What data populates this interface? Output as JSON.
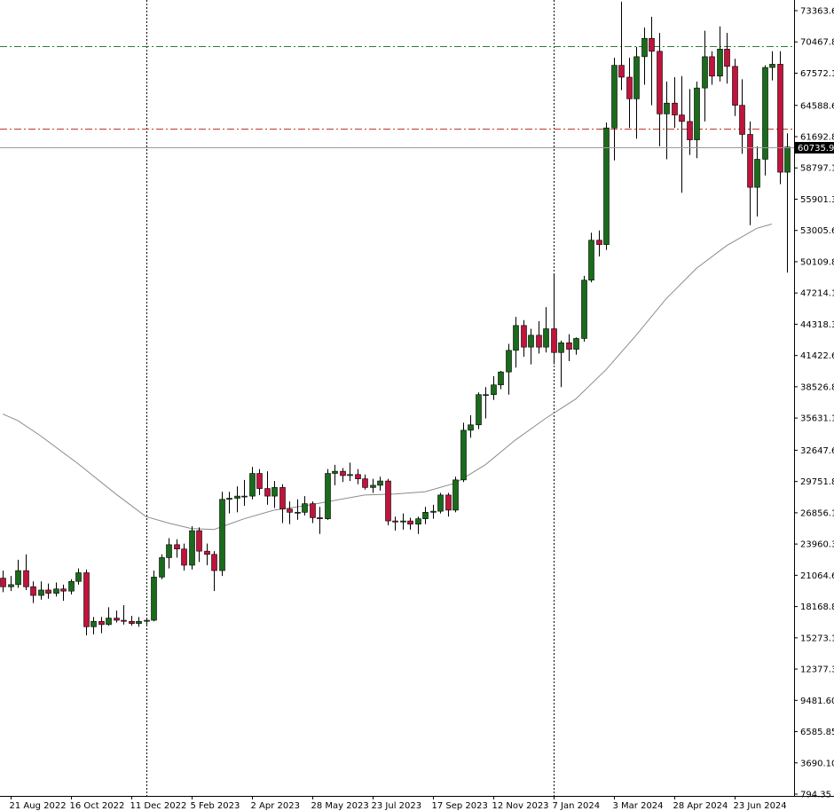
{
  "chart_data": {
    "type": "candlestick",
    "timeframe": "weekly",
    "y_axis": {
      "labels": [
        "73363.60",
        "70467.85",
        "67572.10",
        "64588.60",
        "61692.85",
        "58797.10",
        "55901.35",
        "53005.60",
        "50109.85",
        "47214.10",
        "44318.35",
        "41422.60",
        "38526.85",
        "35631.10",
        "32647.60",
        "29751.85",
        "26856.10",
        "23960.35",
        "21064.60",
        "18168.85",
        "15273.10",
        "12377.35",
        "9481.60",
        "6585.85",
        "3690.10",
        "794.35"
      ],
      "range": [
        794.35,
        74200
      ]
    },
    "x_axis": {
      "labels": [
        "21 Aug 2022",
        "16 Oct 2022",
        "11 Dec 2022",
        "5 Feb 2023",
        "2 Apr 2023",
        "28 May 2023",
        "23 Jul 2023",
        "17 Sep 2023",
        "12 Nov 2023",
        "7 Jan 2024",
        "3 Mar 2024",
        "28 Apr 2024",
        "23 Jun 2024"
      ],
      "label_bar_index": [
        1,
        9,
        17,
        25,
        33,
        41,
        49,
        57,
        65,
        73,
        81,
        89,
        97
      ]
    },
    "current_price": "60735.96",
    "current_price_value": 60735.96,
    "horizontal_lines": [
      {
        "value": 70100,
        "style": "dash-dot",
        "color": "#2e7d32"
      },
      {
        "value": 62450,
        "style": "dash-dot",
        "color": "#c0392b"
      }
    ],
    "vertical_separators_bar_index": [
      19,
      73
    ],
    "colors": {
      "bull": "#1a6b1a",
      "bear": "#c0143c",
      "wick": "#000000",
      "ma": "#8c8c8c",
      "grid": "#000000"
    },
    "candles": [
      [
        20800,
        21500,
        19500,
        20000
      ],
      [
        20000,
        21000,
        19600,
        20200
      ],
      [
        20200,
        22500,
        19900,
        21500
      ],
      [
        21500,
        23000,
        19700,
        20000
      ],
      [
        20000,
        20500,
        18500,
        19200
      ],
      [
        19200,
        20500,
        18800,
        19700
      ],
      [
        19700,
        20300,
        18900,
        19400
      ],
      [
        19400,
        20400,
        19100,
        19800
      ],
      [
        19800,
        20200,
        18700,
        19600
      ],
      [
        19600,
        20700,
        19300,
        20500
      ],
      [
        20500,
        21700,
        20200,
        21300
      ],
      [
        21300,
        21600,
        15500,
        16300
      ],
      [
        16300,
        17200,
        15600,
        16800
      ],
      [
        16800,
        17200,
        15700,
        16500
      ],
      [
        16500,
        18100,
        16400,
        17100
      ],
      [
        17100,
        17800,
        16700,
        16900
      ],
      [
        16900,
        18300,
        16500,
        16800
      ],
      [
        16800,
        17300,
        16400,
        16600
      ],
      [
        16600,
        17200,
        16300,
        16800
      ],
      [
        16800,
        17100,
        16500,
        16900
      ],
      [
        16900,
        21500,
        16800,
        20900
      ],
      [
        20900,
        23000,
        20700,
        22700
      ],
      [
        22700,
        24500,
        21700,
        23900
      ],
      [
        23900,
        24400,
        22700,
        23500
      ],
      [
        23500,
        24000,
        21500,
        22000
      ],
      [
        22000,
        25600,
        21600,
        25200
      ],
      [
        25200,
        25500,
        22300,
        23300
      ],
      [
        23300,
        24000,
        22000,
        23000
      ],
      [
        23000,
        23300,
        19600,
        21500
      ],
      [
        21500,
        28800,
        21000,
        28100
      ],
      [
        28100,
        28800,
        26800,
        28200
      ],
      [
        28200,
        29300,
        26900,
        28400
      ],
      [
        28400,
        29900,
        27500,
        28400
      ],
      [
        28400,
        31100,
        28100,
        30500
      ],
      [
        30500,
        30900,
        28500,
        29100
      ],
      [
        29100,
        30700,
        27600,
        28400
      ],
      [
        28400,
        29800,
        27300,
        29200
      ],
      [
        29200,
        29500,
        25900,
        27200
      ],
      [
        27200,
        27900,
        25800,
        26900
      ],
      [
        26900,
        28100,
        26200,
        26900
      ],
      [
        26900,
        28400,
        26600,
        27700
      ],
      [
        27700,
        27900,
        25900,
        26400
      ],
      [
        26400,
        27400,
        24900,
        26300
      ],
      [
        26300,
        30900,
        26200,
        30500
      ],
      [
        30500,
        31300,
        29400,
        30700
      ],
      [
        30700,
        31000,
        29700,
        30300
      ],
      [
        30300,
        31500,
        29800,
        30400
      ],
      [
        30400,
        30900,
        29500,
        30000
      ],
      [
        30000,
        30400,
        29000,
        29200
      ],
      [
        29200,
        30000,
        28700,
        29400
      ],
      [
        29400,
        30200,
        28900,
        29800
      ],
      [
        29800,
        30000,
        25700,
        26100
      ],
      [
        26100,
        26500,
        25200,
        26000
      ],
      [
        26000,
        26800,
        25300,
        26100
      ],
      [
        26100,
        26400,
        25300,
        25800
      ],
      [
        25800,
        26500,
        24900,
        26300
      ],
      [
        26300,
        27400,
        25800,
        26900
      ],
      [
        26900,
        27600,
        26300,
        27000
      ],
      [
        27000,
        28700,
        26800,
        28500
      ],
      [
        28500,
        28700,
        26500,
        27100
      ],
      [
        27100,
        30200,
        26900,
        29900
      ],
      [
        29900,
        35200,
        29700,
        34500
      ],
      [
        34500,
        35900,
        33800,
        35000
      ],
      [
        35000,
        38000,
        34600,
        37800
      ],
      [
        37800,
        38500,
        35600,
        37800
      ],
      [
        37800,
        39500,
        37300,
        38700
      ],
      [
        38700,
        40000,
        38300,
        39900
      ],
      [
        39900,
        42500,
        37800,
        41900
      ],
      [
        41900,
        45000,
        40300,
        44200
      ],
      [
        44200,
        44700,
        41300,
        42200
      ],
      [
        42200,
        43900,
        40600,
        43300
      ],
      [
        43300,
        44600,
        41600,
        42200
      ],
      [
        42200,
        45900,
        41700,
        43900
      ],
      [
        43900,
        48900,
        40600,
        41700
      ],
      [
        41700,
        42800,
        38500,
        42600
      ],
      [
        42600,
        43400,
        40900,
        42000
      ],
      [
        42000,
        43100,
        41500,
        43000
      ],
      [
        43000,
        48800,
        42700,
        48400
      ],
      [
        48400,
        52800,
        48200,
        52100
      ],
      [
        52100,
        53000,
        50600,
        51700
      ],
      [
        51700,
        63000,
        51200,
        62500
      ],
      [
        62500,
        69000,
        59500,
        68300
      ],
      [
        68300,
        74200,
        66000,
        67200
      ],
      [
        67200,
        69000,
        62500,
        65200
      ],
      [
        65200,
        70000,
        61500,
        69100
      ],
      [
        69100,
        71800,
        66500,
        70800
      ],
      [
        70800,
        72800,
        64600,
        69600
      ],
      [
        69600,
        71300,
        60800,
        63800
      ],
      [
        63800,
        66800,
        59600,
        64800
      ],
      [
        64800,
        67200,
        62500,
        63700
      ],
      [
        63700,
        67300,
        56500,
        63100
      ],
      [
        63100,
        66100,
        60000,
        61400
      ],
      [
        61400,
        66800,
        59700,
        66200
      ],
      [
        66200,
        71500,
        63100,
        69100
      ],
      [
        69100,
        69600,
        66500,
        67300
      ],
      [
        67300,
        71900,
        66800,
        69800
      ],
      [
        69800,
        71300,
        66600,
        68200
      ],
      [
        68200,
        68900,
        63600,
        64600
      ],
      [
        64600,
        67000,
        60100,
        61900
      ],
      [
        61900,
        63100,
        53500,
        57000
      ],
      [
        57000,
        60800,
        54300,
        59600
      ],
      [
        59600,
        68300,
        58100,
        68100
      ],
      [
        68100,
        69600,
        66900,
        68400
      ],
      [
        68400,
        69600,
        57300,
        58400
      ],
      [
        58400,
        62000,
        49100,
        60736
      ]
    ],
    "moving_average": [
      [
        0,
        36000
      ],
      [
        2,
        35400
      ],
      [
        5,
        34000
      ],
      [
        10,
        31400
      ],
      [
        15,
        28600
      ],
      [
        19,
        26500
      ],
      [
        22,
        25900
      ],
      [
        25,
        25400
      ],
      [
        28,
        25300
      ],
      [
        32,
        26300
      ],
      [
        36,
        27100
      ],
      [
        40,
        27500
      ],
      [
        44,
        28000
      ],
      [
        48,
        28500
      ],
      [
        52,
        28600
      ],
      [
        56,
        28800
      ],
      [
        60,
        29600
      ],
      [
        64,
        31300
      ],
      [
        68,
        33600
      ],
      [
        72,
        35600
      ],
      [
        76,
        37400
      ],
      [
        80,
        40100
      ],
      [
        84,
        43300
      ],
      [
        88,
        46700
      ],
      [
        92,
        49500
      ],
      [
        96,
        51600
      ],
      [
        100,
        53200
      ],
      [
        102,
        53600
      ]
    ]
  }
}
